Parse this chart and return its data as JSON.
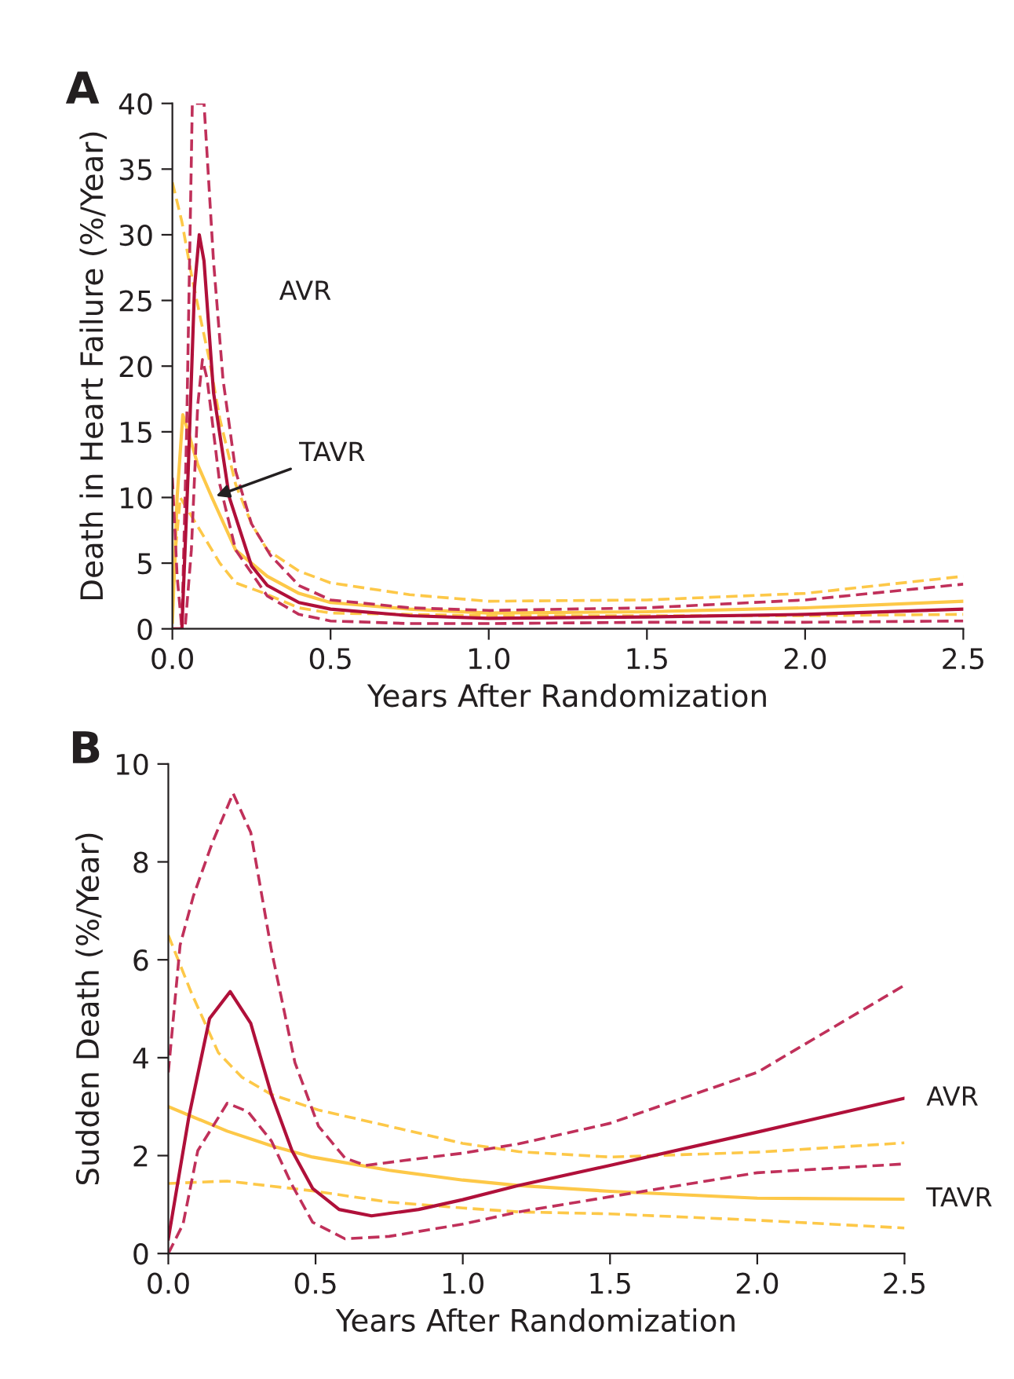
{
  "chart_data": [
    {
      "type": "line",
      "title": "A",
      "xlabel": "Years After Randomization",
      "ylabel": "Death in Heart Failure (%/Year)",
      "xlim": [
        0,
        2.5
      ],
      "ylim": [
        0,
        40
      ],
      "xticks": [
        {
          "value": 0,
          "label": "0.0"
        },
        {
          "value": 0.5,
          "label": "0.5"
        },
        {
          "value": 1,
          "label": "1.0"
        },
        {
          "value": 1.5,
          "label": "1.5"
        },
        {
          "value": 2,
          "label": "2.0"
        },
        {
          "value": 2.5,
          "label": "2.5"
        }
      ],
      "yticks": [
        0,
        5,
        10,
        15,
        20,
        25,
        30,
        35,
        40
      ],
      "grid": false,
      "legend": false,
      "series": [
        {
          "color": "#fdc848",
          "line_style": "dashed",
          "x": [
            0,
            0.03,
            0.06,
            0.09,
            0.115,
            0.15,
            0.2,
            0.25,
            0.3,
            0.4,
            0.5,
            0.75,
            1.0,
            1.5,
            2.0,
            2.5
          ],
          "values": [
            34,
            31,
            27,
            23.5,
            20.7,
            16,
            11,
            8,
            6,
            4.4,
            3.5,
            2.6,
            2.1,
            2.2,
            2.7,
            4.0
          ]
        },
        {
          "color": "#fdc848",
          "line_style": "dashed",
          "x": [
            0,
            0.01,
            0.025,
            0.05,
            0.1,
            0.15,
            0.2,
            0.28,
            0.4,
            0.5,
            0.75,
            1.0,
            1.5,
            2.0,
            2.5
          ],
          "values": [
            1,
            6,
            10,
            9,
            7,
            5,
            3.5,
            2.8,
            1.6,
            1.2,
            1.1,
            1.0,
            1.0,
            1.0,
            1.1
          ]
        },
        {
          "color": "#fdc848",
          "line_style": "solid",
          "x": [
            0,
            0.015,
            0.033,
            0.05,
            0.08,
            0.125,
            0.2,
            0.3,
            0.4,
            0.5,
            0.75,
            1.0,
            1.5,
            2.0,
            2.5
          ],
          "values": [
            0.5,
            10,
            16.3,
            15,
            12.5,
            10,
            6,
            4,
            2.7,
            2,
            1.5,
            1.2,
            1.3,
            1.6,
            2.1
          ]
        },
        {
          "color": "#c0305a",
          "line_style": "dashed",
          "x": [
            0,
            0.015,
            0.03,
            0.045,
            0.063,
            0.1,
            0.13,
            0.16,
            0.2,
            0.25,
            0.31,
            0.4,
            0.5,
            0.75,
            1.0,
            1.5,
            2.0,
            2.5
          ],
          "values": [
            11.5,
            4,
            0,
            15,
            40,
            40,
            28,
            19,
            12,
            8,
            5.6,
            3.3,
            2.2,
            1.6,
            1.4,
            1.6,
            2.2,
            3.4
          ]
        },
        {
          "color": "#c0305a",
          "line_style": "dashed",
          "x": [
            0,
            0.04,
            0.06,
            0.08,
            0.095,
            0.11,
            0.15,
            0.2,
            0.3,
            0.4,
            0.5,
            0.75,
            1.0,
            1.5,
            2.0,
            2.5
          ],
          "values": [
            0,
            0,
            6,
            17,
            20.5,
            19,
            11,
            6,
            2.5,
            1.1,
            0.6,
            0.4,
            0.4,
            0.5,
            0.5,
            0.6
          ]
        },
        {
          "color": "#b0103a",
          "line_style": "solid",
          "x": [
            0,
            0.03,
            0.05,
            0.07,
            0.085,
            0.1,
            0.13,
            0.18,
            0.25,
            0.3,
            0.4,
            0.5,
            0.75,
            1.0,
            1.5,
            2.0,
            2.5
          ],
          "values": [
            0,
            0,
            12,
            26,
            30,
            28,
            18,
            10,
            4.8,
            3.3,
            2,
            1.5,
            1,
            0.8,
            0.9,
            1.1,
            1.5
          ]
        }
      ],
      "annotations": [
        "AVR",
        {
          "text": "TAVR",
          "x": 0.125,
          "y": 10
        }
      ]
    },
    {
      "type": "line",
      "title": "B",
      "xlabel": "Years After Randomization",
      "ylabel": "Sudden Death (%/Year)",
      "xlim": [
        0,
        2.5
      ],
      "ylim": [
        0,
        10
      ],
      "xticks": [
        {
          "value": 0,
          "label": "0.0"
        },
        {
          "value": 0.5,
          "label": "0.5"
        },
        {
          "value": 1,
          "label": "1.0"
        },
        {
          "value": 1.5,
          "label": "1.5"
        },
        {
          "value": 2,
          "label": "2.0"
        },
        {
          "value": 2.5,
          "label": "2.5"
        }
      ],
      "yticks": [
        0,
        2,
        4,
        6,
        8,
        10
      ],
      "grid": false,
      "legend": false,
      "series": [
        {
          "color": "#fdc848",
          "line_style": "dashed",
          "x": [
            0,
            0.08,
            0.17,
            0.25,
            0.35,
            0.51,
            0.75,
            1.0,
            1.19,
            1.5,
            2.0,
            2.5
          ],
          "values": [
            6.5,
            5.3,
            4.1,
            3.6,
            3.25,
            2.93,
            2.6,
            2.25,
            2.08,
            1.97,
            2.07,
            2.26
          ]
        },
        {
          "name": "TAVR",
          "color": "#fdc848",
          "line_style": "solid",
          "x": [
            0,
            0.2,
            0.35,
            0.49,
            0.75,
            1.0,
            1.19,
            1.5,
            2.0,
            2.5
          ],
          "values": [
            3.0,
            2.5,
            2.2,
            1.97,
            1.7,
            1.5,
            1.39,
            1.27,
            1.13,
            1.11
          ]
        },
        {
          "color": "#fdc848",
          "line_style": "dashed",
          "x": [
            0,
            0.2,
            0.49,
            0.75,
            1.0,
            1.19,
            1.5,
            2.0,
            2.5
          ],
          "values": [
            1.43,
            1.48,
            1.28,
            1.05,
            0.93,
            0.85,
            0.81,
            0.68,
            0.52
          ]
        },
        {
          "color": "#c0305a",
          "line_style": "dashed",
          "x": [
            0,
            0.04,
            0.085,
            0.15,
            0.22,
            0.28,
            0.35,
            0.43,
            0.51,
            0.6,
            0.67,
            0.8,
            1.0,
            1.19,
            1.5,
            2.0,
            2.5
          ],
          "values": [
            3.7,
            6.3,
            7.3,
            8.4,
            9.4,
            8.6,
            6.2,
            3.9,
            2.6,
            1.95,
            1.8,
            1.9,
            2.05,
            2.24,
            2.66,
            3.7,
            5.48
          ]
        },
        {
          "name": "AVR",
          "color": "#b0103a",
          "line_style": "solid",
          "x": [
            0,
            0.07,
            0.14,
            0.21,
            0.28,
            0.35,
            0.42,
            0.49,
            0.58,
            0.69,
            0.85,
            1.0,
            1.19,
            1.5,
            2.0,
            2.5
          ],
          "values": [
            0.3,
            2.8,
            4.8,
            5.35,
            4.7,
            3.25,
            2.1,
            1.33,
            0.9,
            0.77,
            0.9,
            1.1,
            1.39,
            1.8,
            2.48,
            3.17
          ]
        },
        {
          "color": "#c0305a",
          "line_style": "dashed",
          "x": [
            0,
            0.05,
            0.1,
            0.2,
            0.27,
            0.35,
            0.42,
            0.49,
            0.6,
            0.75,
            1.0,
            1.19,
            1.5,
            2.0,
            2.5
          ],
          "values": [
            0,
            0.6,
            2.1,
            3.07,
            2.9,
            2.3,
            1.4,
            0.64,
            0.3,
            0.35,
            0.6,
            0.85,
            1.16,
            1.65,
            1.83
          ]
        }
      ]
    }
  ]
}
